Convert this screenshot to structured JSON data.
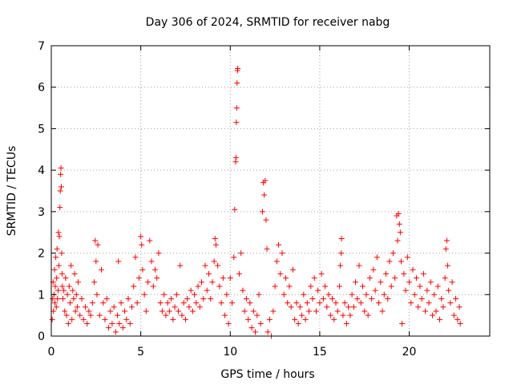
{
  "chart_data": {
    "type": "scatter",
    "title": "Day 306 of 2024, SRMTID for receiver nabg",
    "xlabel": "GPS time / hours",
    "ylabel": "SRMTID / TECUs",
    "xlim": [
      0,
      24.5
    ],
    "ylim": [
      0,
      7
    ],
    "x_ticks": [
      "0",
      "5",
      "10",
      "15",
      "20"
    ],
    "y_ticks": [
      "0",
      "1",
      "2",
      "3",
      "4",
      "5",
      "6",
      "7"
    ],
    "grid": true,
    "marker": "plus",
    "color": "#ff0000",
    "series": [
      {
        "name": "SRMTID",
        "points": [
          [
            0.05,
            0.4
          ],
          [
            0.08,
            0.9
          ],
          [
            0.1,
            1.3
          ],
          [
            0.12,
            0.6
          ],
          [
            0.15,
            1.0
          ],
          [
            0.18,
            1.6
          ],
          [
            0.2,
            0.8
          ],
          [
            0.22,
            1.2
          ],
          [
            0.25,
            1.9
          ],
          [
            0.28,
            0.7
          ],
          [
            0.3,
            1.4
          ],
          [
            0.32,
            2.1
          ],
          [
            0.35,
            0.9
          ],
          [
            0.38,
            1.1
          ],
          [
            0.4,
            2.5
          ],
          [
            0.42,
            1.7
          ],
          [
            0.45,
            2.4
          ],
          [
            0.48,
            3.1
          ],
          [
            0.5,
            3.5
          ],
          [
            0.52,
            3.9
          ],
          [
            0.54,
            4.05
          ],
          [
            0.56,
            3.6
          ],
          [
            0.58,
            2.0
          ],
          [
            0.6,
            1.5
          ],
          [
            0.62,
            1.2
          ],
          [
            0.65,
            0.9
          ],
          [
            0.7,
            1.1
          ],
          [
            0.75,
            0.6
          ],
          [
            0.8,
            1.4
          ],
          [
            0.85,
            0.5
          ],
          [
            0.9,
            1.0
          ],
          [
            0.95,
            0.3
          ],
          [
            1.0,
            1.2
          ],
          [
            1.05,
            0.8
          ],
          [
            1.1,
            1.7
          ],
          [
            1.15,
            0.4
          ],
          [
            1.2,
            1.1
          ],
          [
            1.25,
            0.9
          ],
          [
            1.3,
            1.5
          ],
          [
            1.35,
            0.6
          ],
          [
            1.4,
            1.0
          ],
          [
            1.45,
            0.7
          ],
          [
            1.5,
            1.3
          ],
          [
            1.6,
            0.5
          ],
          [
            1.7,
            0.9
          ],
          [
            1.8,
            0.4
          ],
          [
            1.9,
            0.7
          ],
          [
            2.0,
            0.3
          ],
          [
            2.1,
            0.6
          ],
          [
            2.2,
            0.5
          ],
          [
            2.3,
            0.8
          ],
          [
            2.4,
            1.3
          ],
          [
            2.45,
            2.3
          ],
          [
            2.5,
            1.8
          ],
          [
            2.55,
            1.0
          ],
          [
            2.6,
            2.2
          ],
          [
            2.7,
            0.5
          ],
          [
            2.8,
            1.6
          ],
          [
            2.9,
            0.8
          ],
          [
            3.0,
            0.4
          ],
          [
            3.1,
            0.9
          ],
          [
            3.2,
            0.2
          ],
          [
            3.3,
            0.6
          ],
          [
            3.4,
            0.3
          ],
          [
            3.5,
            0.7
          ],
          [
            3.6,
            0.1
          ],
          [
            3.7,
            0.5
          ],
          [
            3.75,
            1.8
          ],
          [
            3.8,
            0.3
          ],
          [
            3.9,
            0.8
          ],
          [
            4.0,
            0.2
          ],
          [
            4.1,
            0.6
          ],
          [
            4.2,
            0.4
          ],
          [
            4.3,
            0.9
          ],
          [
            4.4,
            0.3
          ],
          [
            4.5,
            0.7
          ],
          [
            4.6,
            1.2
          ],
          [
            4.7,
            1.9
          ],
          [
            4.8,
            0.8
          ],
          [
            4.9,
            1.4
          ],
          [
            5.0,
            2.4
          ],
          [
            5.05,
            2.2
          ],
          [
            5.1,
            1.6
          ],
          [
            5.2,
            1.0
          ],
          [
            5.3,
            0.6
          ],
          [
            5.4,
            1.3
          ],
          [
            5.5,
            2.3
          ],
          [
            5.6,
            1.8
          ],
          [
            5.7,
            1.2
          ],
          [
            5.8,
            1.6
          ],
          [
            5.9,
            1.4
          ],
          [
            6.0,
            2.0
          ],
          [
            6.1,
            0.8
          ],
          [
            6.2,
            0.6
          ],
          [
            6.3,
            1.0
          ],
          [
            6.4,
            0.5
          ],
          [
            6.5,
            0.8
          ],
          [
            6.6,
            0.6
          ],
          [
            6.7,
            0.9
          ],
          [
            6.8,
            0.4
          ],
          [
            6.9,
            0.7
          ],
          [
            7.0,
            1.0
          ],
          [
            7.1,
            0.6
          ],
          [
            7.2,
            1.7
          ],
          [
            7.3,
            0.5
          ],
          [
            7.4,
            0.8
          ],
          [
            7.5,
            0.4
          ],
          [
            7.6,
            0.9
          ],
          [
            7.7,
            0.7
          ],
          [
            7.8,
            1.1
          ],
          [
            7.9,
            0.6
          ],
          [
            8.0,
            1.0
          ],
          [
            8.1,
            0.8
          ],
          [
            8.2,
            1.2
          ],
          [
            8.3,
            0.7
          ],
          [
            8.4,
            1.3
          ],
          [
            8.5,
            0.9
          ],
          [
            8.6,
            1.7
          ],
          [
            8.7,
            1.1
          ],
          [
            8.8,
            1.5
          ],
          [
            8.9,
            0.9
          ],
          [
            9.0,
            1.3
          ],
          [
            9.1,
            1.8
          ],
          [
            9.15,
            2.35
          ],
          [
            9.2,
            2.2
          ],
          [
            9.3,
            1.7
          ],
          [
            9.4,
            1.2
          ],
          [
            9.5,
            0.8
          ],
          [
            9.6,
            1.4
          ],
          [
            9.7,
            0.5
          ],
          [
            9.8,
            1.0
          ],
          [
            9.9,
            0.3
          ],
          [
            10.0,
            1.4
          ],
          [
            10.1,
            0.8
          ],
          [
            10.2,
            1.9
          ],
          [
            10.25,
            3.05
          ],
          [
            10.3,
            4.2
          ],
          [
            10.32,
            4.3
          ],
          [
            10.34,
            5.15
          ],
          [
            10.36,
            5.5
          ],
          [
            10.38,
            6.1
          ],
          [
            10.4,
            6.4
          ],
          [
            10.42,
            6.45
          ],
          [
            10.5,
            1.5
          ],
          [
            10.6,
            2.0
          ],
          [
            10.7,
            1.1
          ],
          [
            10.8,
            0.6
          ],
          [
            10.9,
            0.9
          ],
          [
            11.0,
            0.4
          ],
          [
            11.1,
            0.8
          ],
          [
            11.2,
            0.2
          ],
          [
            11.3,
            0.6
          ],
          [
            11.4,
            0.1
          ],
          [
            11.5,
            0.5
          ],
          [
            11.6,
            1.0
          ],
          [
            11.7,
            0.3
          ],
          [
            11.8,
            3.0
          ],
          [
            11.85,
            3.7
          ],
          [
            11.9,
            3.4
          ],
          [
            11.95,
            3.75
          ],
          [
            12.0,
            2.8
          ],
          [
            12.05,
            2.1
          ],
          [
            12.1,
            0.1
          ],
          [
            12.2,
            0.4
          ],
          [
            12.3,
            0.0
          ],
          [
            12.4,
            0.6
          ],
          [
            12.5,
            1.2
          ],
          [
            12.6,
            1.8
          ],
          [
            12.7,
            2.2
          ],
          [
            12.8,
            1.5
          ],
          [
            12.9,
            2.0
          ],
          [
            13.0,
            1.0
          ],
          [
            13.1,
            1.4
          ],
          [
            13.2,
            0.8
          ],
          [
            13.3,
            1.2
          ],
          [
            13.4,
            0.7
          ],
          [
            13.5,
            1.6
          ],
          [
            13.6,
            0.4
          ],
          [
            13.7,
            0.8
          ],
          [
            13.8,
            0.3
          ],
          [
            13.9,
            0.7
          ],
          [
            14.0,
            0.5
          ],
          [
            14.1,
            1.0
          ],
          [
            14.2,
            0.4
          ],
          [
            14.3,
            0.8
          ],
          [
            14.4,
            0.6
          ],
          [
            14.5,
            1.2
          ],
          [
            14.6,
            0.9
          ],
          [
            14.7,
            1.4
          ],
          [
            14.8,
            0.6
          ],
          [
            14.9,
            1.1
          ],
          [
            15.0,
            0.8
          ],
          [
            15.1,
            1.5
          ],
          [
            15.2,
            0.9
          ],
          [
            15.3,
            1.2
          ],
          [
            15.4,
            0.7
          ],
          [
            15.5,
            1.0
          ],
          [
            15.6,
            0.5
          ],
          [
            15.7,
            0.9
          ],
          [
            15.8,
            0.4
          ],
          [
            15.9,
            0.8
          ],
          [
            16.0,
            0.6
          ],
          [
            16.1,
            1.2
          ],
          [
            16.15,
            1.7
          ],
          [
            16.2,
            2.0
          ],
          [
            16.22,
            2.35
          ],
          [
            16.3,
            0.5
          ],
          [
            16.4,
            0.8
          ],
          [
            16.5,
            0.3
          ],
          [
            16.6,
            0.7
          ],
          [
            16.7,
            0.5
          ],
          [
            16.8,
            1.0
          ],
          [
            16.9,
            0.7
          ],
          [
            17.0,
            1.3
          ],
          [
            17.1,
            0.9
          ],
          [
            17.2,
            1.7
          ],
          [
            17.3,
            0.8
          ],
          [
            17.4,
            1.2
          ],
          [
            17.5,
            0.6
          ],
          [
            17.6,
            1.0
          ],
          [
            17.7,
            0.5
          ],
          [
            17.8,
            1.4
          ],
          [
            17.9,
            0.9
          ],
          [
            18.0,
            1.6
          ],
          [
            18.1,
            1.1
          ],
          [
            18.2,
            1.9
          ],
          [
            18.3,
            0.8
          ],
          [
            18.4,
            1.3
          ],
          [
            18.5,
            0.6
          ],
          [
            18.6,
            1.0
          ],
          [
            18.7,
            1.5
          ],
          [
            18.8,
            0.9
          ],
          [
            18.9,
            1.8
          ],
          [
            19.0,
            1.2
          ],
          [
            19.1,
            2.0
          ],
          [
            19.2,
            1.4
          ],
          [
            19.3,
            2.9
          ],
          [
            19.35,
            2.3
          ],
          [
            19.4,
            2.95
          ],
          [
            19.45,
            2.7
          ],
          [
            19.5,
            2.5
          ],
          [
            19.55,
            1.8
          ],
          [
            19.6,
            0.3
          ],
          [
            19.7,
            1.5
          ],
          [
            19.8,
            1.1
          ],
          [
            19.9,
            1.9
          ],
          [
            20.0,
            1.3
          ],
          [
            20.1,
            0.8
          ],
          [
            20.2,
            1.6
          ],
          [
            20.3,
            1.0
          ],
          [
            20.4,
            1.4
          ],
          [
            20.5,
            0.7
          ],
          [
            20.6,
            1.2
          ],
          [
            20.7,
            0.9
          ],
          [
            20.8,
            1.5
          ],
          [
            20.9,
            0.6
          ],
          [
            21.0,
            1.1
          ],
          [
            21.1,
            0.8
          ],
          [
            21.2,
            1.3
          ],
          [
            21.3,
            0.5
          ],
          [
            21.4,
            1.0
          ],
          [
            21.5,
            0.6
          ],
          [
            21.6,
            1.2
          ],
          [
            21.7,
            0.4
          ],
          [
            21.8,
            0.9
          ],
          [
            21.9,
            0.7
          ],
          [
            22.0,
            1.4
          ],
          [
            22.05,
            2.1
          ],
          [
            22.1,
            2.3
          ],
          [
            22.15,
            1.7
          ],
          [
            22.2,
            1.1
          ],
          [
            22.3,
            0.8
          ],
          [
            22.4,
            1.3
          ],
          [
            22.5,
            0.5
          ],
          [
            22.6,
            0.9
          ],
          [
            22.7,
            0.4
          ],
          [
            22.8,
            0.7
          ],
          [
            22.85,
            0.3
          ]
        ]
      }
    ]
  }
}
